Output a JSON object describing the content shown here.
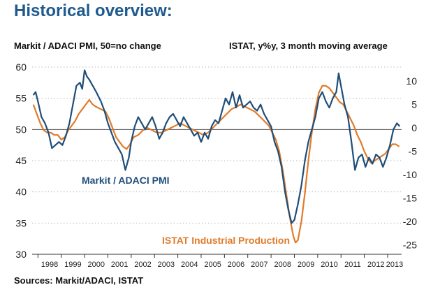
{
  "header": {
    "title": "Historical overview:",
    "left_subtitle": "Markit / ADACI PMI, 50=no change",
    "right_subtitle": "ISTAT, y%y, 3 month moving average",
    "source": "Sources: Markit/ADACI, ISTAT"
  },
  "chart_data": {
    "type": "line",
    "title": "Historical overview:",
    "left_axis_label": "Markit / ADACI PMI, 50=no change",
    "right_axis_label": "ISTAT, y%y, 3 month moving average",
    "x_ticks": [
      "1998",
      "1999",
      "2000",
      "2001",
      "2002",
      "2003",
      "2004",
      "2005",
      "2006",
      "2007",
      "2008",
      "2009",
      "2010",
      "2011",
      "2012",
      "2013"
    ],
    "xlim": [
      1997.75,
      2013.6
    ],
    "ylim_left": [
      30,
      60
    ],
    "y_ticks_left": [
      "60",
      "55",
      "50",
      "45",
      "40",
      "35",
      "30"
    ],
    "ylim_right": [
      -27,
      13
    ],
    "y_ticks_right": [
      "10",
      "5",
      "0",
      "-5",
      "-10",
      "-15",
      "-20",
      "-25"
    ],
    "reference_line": {
      "axis": "left",
      "value": 50
    },
    "colors": {
      "pmi": "#1f4e79",
      "istat": "#e07b2a",
      "title": "#1f5a8f",
      "grid": "#b8b8b8"
    },
    "series": [
      {
        "name": "Markit / ADACI PMI",
        "label": "Markit / ADACI PMI",
        "axis": "left",
        "color": "#1f4e79",
        "points": [
          [
            1997.8,
            55.5
          ],
          [
            1997.9,
            56.0
          ],
          [
            1998.0,
            54.5
          ],
          [
            1998.15,
            52.0
          ],
          [
            1998.3,
            51.0
          ],
          [
            1998.45,
            49.5
          ],
          [
            1998.6,
            47.0
          ],
          [
            1998.75,
            47.5
          ],
          [
            1998.9,
            48.0
          ],
          [
            1999.05,
            47.5
          ],
          [
            1999.2,
            49.0
          ],
          [
            1999.35,
            51.0
          ],
          [
            1999.5,
            54.0
          ],
          [
            1999.65,
            57.0
          ],
          [
            1999.8,
            57.5
          ],
          [
            1999.9,
            56.5
          ],
          [
            2000.0,
            59.5
          ],
          [
            2000.1,
            58.5
          ],
          [
            2000.2,
            58.0
          ],
          [
            2000.35,
            57.0
          ],
          [
            2000.5,
            56.0
          ],
          [
            2000.7,
            54.5
          ],
          [
            2000.85,
            53.0
          ],
          [
            2001.0,
            51.0
          ],
          [
            2001.15,
            49.5
          ],
          [
            2001.3,
            48.0
          ],
          [
            2001.45,
            47.0
          ],
          [
            2001.6,
            46.0
          ],
          [
            2001.75,
            43.5
          ],
          [
            2001.9,
            45.5
          ],
          [
            2002.0,
            48.0
          ],
          [
            2002.15,
            50.5
          ],
          [
            2002.3,
            52.0
          ],
          [
            2002.45,
            51.0
          ],
          [
            2002.6,
            50.0
          ],
          [
            2002.75,
            51.0
          ],
          [
            2002.9,
            52.0
          ],
          [
            2003.05,
            50.5
          ],
          [
            2003.2,
            48.5
          ],
          [
            2003.35,
            49.5
          ],
          [
            2003.5,
            51.0
          ],
          [
            2003.65,
            52.0
          ],
          [
            2003.8,
            52.5
          ],
          [
            2003.95,
            51.5
          ],
          [
            2004.1,
            50.5
          ],
          [
            2004.25,
            52.0
          ],
          [
            2004.4,
            51.0
          ],
          [
            2004.55,
            50.0
          ],
          [
            2004.7,
            49.0
          ],
          [
            2004.85,
            49.5
          ],
          [
            2005.0,
            48.0
          ],
          [
            2005.15,
            49.5
          ],
          [
            2005.3,
            48.5
          ],
          [
            2005.45,
            50.5
          ],
          [
            2005.6,
            51.5
          ],
          [
            2005.75,
            51.0
          ],
          [
            2005.9,
            53.0
          ],
          [
            2006.05,
            55.0
          ],
          [
            2006.2,
            54.0
          ],
          [
            2006.35,
            56.0
          ],
          [
            2006.5,
            53.5
          ],
          [
            2006.65,
            55.5
          ],
          [
            2006.8,
            53.5
          ],
          [
            2006.95,
            54.0
          ],
          [
            2007.1,
            54.5
          ],
          [
            2007.25,
            53.5
          ],
          [
            2007.4,
            53.0
          ],
          [
            2007.55,
            54.0
          ],
          [
            2007.7,
            52.5
          ],
          [
            2007.85,
            51.5
          ],
          [
            2008.0,
            50.5
          ],
          [
            2008.15,
            48.0
          ],
          [
            2008.3,
            46.5
          ],
          [
            2008.45,
            44.0
          ],
          [
            2008.6,
            40.0
          ],
          [
            2008.75,
            37.0
          ],
          [
            2008.88,
            35.0
          ],
          [
            2009.0,
            35.5
          ],
          [
            2009.15,
            38.0
          ],
          [
            2009.3,
            41.0
          ],
          [
            2009.45,
            45.0
          ],
          [
            2009.6,
            48.0
          ],
          [
            2009.75,
            50.0
          ],
          [
            2009.9,
            52.0
          ],
          [
            2010.05,
            55.0
          ],
          [
            2010.2,
            56.0
          ],
          [
            2010.35,
            54.5
          ],
          [
            2010.5,
            53.5
          ],
          [
            2010.65,
            55.0
          ],
          [
            2010.8,
            56.0
          ],
          [
            2010.9,
            59.0
          ],
          [
            2011.0,
            57.0
          ],
          [
            2011.15,
            54.0
          ],
          [
            2011.3,
            52.0
          ],
          [
            2011.45,
            48.0
          ],
          [
            2011.6,
            43.5
          ],
          [
            2011.75,
            45.5
          ],
          [
            2011.9,
            46.0
          ],
          [
            2012.05,
            44.0
          ],
          [
            2012.2,
            45.5
          ],
          [
            2012.35,
            44.5
          ],
          [
            2012.5,
            46.0
          ],
          [
            2012.65,
            45.5
          ],
          [
            2012.8,
            44.0
          ],
          [
            2012.95,
            45.5
          ],
          [
            2013.1,
            47.5
          ],
          [
            2013.25,
            50.0
          ],
          [
            2013.4,
            51.0
          ],
          [
            2013.52,
            50.5
          ]
        ]
      },
      {
        "name": "ISTAT Industrial Production",
        "label": "ISTAT Industrial Production",
        "axis": "right",
        "color": "#e07b2a",
        "points": [
          [
            1997.8,
            5.0
          ],
          [
            1997.95,
            3.0
          ],
          [
            1998.1,
            1.0
          ],
          [
            1998.25,
            -0.5
          ],
          [
            1998.4,
            -1.0
          ],
          [
            1998.55,
            -1.0
          ],
          [
            1998.7,
            -1.5
          ],
          [
            1998.85,
            -1.5
          ],
          [
            1999.0,
            -2.5
          ],
          [
            1999.15,
            -2.0
          ],
          [
            1999.3,
            -0.5
          ],
          [
            1999.45,
            0.5
          ],
          [
            1999.6,
            1.5
          ],
          [
            1999.75,
            3.0
          ],
          [
            1999.9,
            4.0
          ],
          [
            2000.05,
            5.0
          ],
          [
            2000.2,
            6.0
          ],
          [
            2000.35,
            5.0
          ],
          [
            2000.5,
            4.5
          ],
          [
            2000.7,
            4.0
          ],
          [
            2000.9,
            3.5
          ],
          [
            2001.05,
            2.0
          ],
          [
            2001.2,
            0.0
          ],
          [
            2001.35,
            -2.0
          ],
          [
            2001.5,
            -3.0
          ],
          [
            2001.65,
            -4.0
          ],
          [
            2001.8,
            -4.5
          ],
          [
            2001.95,
            -3.5
          ],
          [
            2002.1,
            -2.0
          ],
          [
            2002.3,
            -1.5
          ],
          [
            2002.5,
            -0.5
          ],
          [
            2002.7,
            0.0
          ],
          [
            2002.9,
            -0.5
          ],
          [
            2003.1,
            -1.0
          ],
          [
            2003.3,
            -1.0
          ],
          [
            2003.5,
            -0.5
          ],
          [
            2003.7,
            0.0
          ],
          [
            2003.9,
            0.5
          ],
          [
            2004.1,
            1.0
          ],
          [
            2004.3,
            0.5
          ],
          [
            2004.5,
            0.0
          ],
          [
            2004.7,
            -0.5
          ],
          [
            2004.9,
            -1.0
          ],
          [
            2005.1,
            -1.5
          ],
          [
            2005.3,
            -1.0
          ],
          [
            2005.5,
            0.0
          ],
          [
            2005.7,
            1.0
          ],
          [
            2005.9,
            2.0
          ],
          [
            2006.1,
            3.0
          ],
          [
            2006.3,
            4.0
          ],
          [
            2006.5,
            4.5
          ],
          [
            2006.7,
            5.0
          ],
          [
            2006.9,
            4.5
          ],
          [
            2007.1,
            4.0
          ],
          [
            2007.3,
            3.5
          ],
          [
            2007.5,
            2.5
          ],
          [
            2007.7,
            1.5
          ],
          [
            2007.9,
            0.5
          ],
          [
            2008.05,
            -1.0
          ],
          [
            2008.2,
            -2.5
          ],
          [
            2008.35,
            -5.0
          ],
          [
            2008.5,
            -9.0
          ],
          [
            2008.65,
            -14.0
          ],
          [
            2008.8,
            -19.0
          ],
          [
            2008.95,
            -23.0
          ],
          [
            2009.05,
            -24.5
          ],
          [
            2009.15,
            -24.0
          ],
          [
            2009.3,
            -20.0
          ],
          [
            2009.45,
            -14.0
          ],
          [
            2009.6,
            -7.0
          ],
          [
            2009.75,
            -1.0
          ],
          [
            2009.9,
            4.0
          ],
          [
            2010.05,
            7.5
          ],
          [
            2010.2,
            9.0
          ],
          [
            2010.35,
            9.0
          ],
          [
            2010.5,
            8.5
          ],
          [
            2010.65,
            7.5
          ],
          [
            2010.8,
            6.5
          ],
          [
            2010.95,
            5.5
          ],
          [
            2011.1,
            5.0
          ],
          [
            2011.25,
            3.5
          ],
          [
            2011.4,
            2.0
          ],
          [
            2011.55,
            0.5
          ],
          [
            2011.7,
            -1.5
          ],
          [
            2011.85,
            -3.0
          ],
          [
            2012.0,
            -5.0
          ],
          [
            2012.15,
            -6.5
          ],
          [
            2012.3,
            -7.5
          ],
          [
            2012.45,
            -7.0
          ],
          [
            2012.6,
            -6.5
          ],
          [
            2012.75,
            -6.0
          ],
          [
            2012.9,
            -5.5
          ],
          [
            2013.05,
            -4.5
          ],
          [
            2013.2,
            -3.5
          ],
          [
            2013.35,
            -3.5
          ],
          [
            2013.5,
            -4.0
          ]
        ]
      }
    ]
  }
}
